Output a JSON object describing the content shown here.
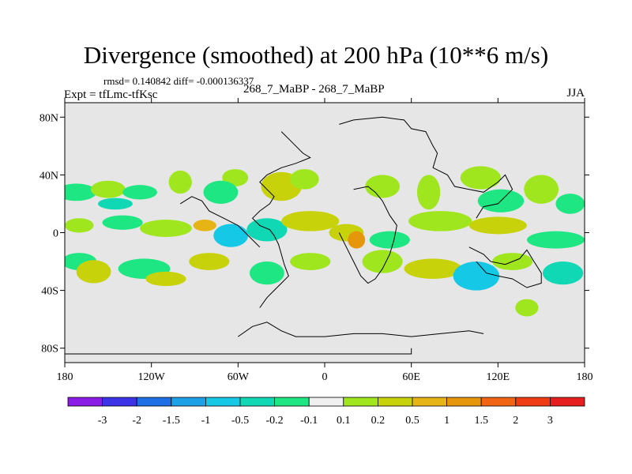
{
  "title": "Divergence (smoothed) at 200 hPa (10**6 m/s)",
  "stats": "rmsd= 0.140842 diff= -0.000136337",
  "experiment": "Expt = tfLmc-tfKsc",
  "case": "268_7_MaBP - 268_7_MaBP",
  "season": "JJA",
  "map": {
    "lon_range": [
      -180,
      180
    ],
    "lat_range": [
      -90,
      90
    ],
    "x_ticks": [
      {
        "value": -180,
        "label": "180"
      },
      {
        "value": -120,
        "label": "120W"
      },
      {
        "value": -60,
        "label": "60W"
      },
      {
        "value": 0,
        "label": "0"
      },
      {
        "value": 60,
        "label": "60E"
      },
      {
        "value": 120,
        "label": "120E"
      },
      {
        "value": 180,
        "label": "180"
      }
    ],
    "y_ticks": [
      {
        "value": 80,
        "label": "80N"
      },
      {
        "value": 40,
        "label": "40N"
      },
      {
        "value": 0,
        "label": "0"
      },
      {
        "value": -40,
        "label": "40S"
      },
      {
        "value": -80,
        "label": "80S"
      }
    ],
    "background_color": "#e6e6e6"
  },
  "colorbar": {
    "colors": [
      "#8a1ce6",
      "#3c32e6",
      "#1e6ee6",
      "#1ea0e6",
      "#14c8e6",
      "#10d8b4",
      "#1ee682",
      "#f0f0f0",
      "#a0e61e",
      "#c8d20a",
      "#e6b414",
      "#e6960a",
      "#f06414",
      "#f03c14",
      "#e61e1e"
    ],
    "labels": [
      "-3",
      "-2",
      "-1.5",
      "-1",
      "-0.5",
      "-0.2",
      "-0.1",
      "0.1",
      "0.2",
      "0.5",
      "1",
      "1.5",
      "2",
      "3"
    ]
  },
  "blobs": [
    {
      "lon": -172,
      "lat": 28,
      "rx": 14,
      "ry": 6,
      "level": 6
    },
    {
      "lon": -150,
      "lat": 30,
      "rx": 12,
      "ry": 6,
      "level": 8
    },
    {
      "lon": -145,
      "lat": 20,
      "rx": 12,
      "ry": 4,
      "level": 5
    },
    {
      "lon": -128,
      "lat": 28,
      "rx": 12,
      "ry": 5,
      "level": 6
    },
    {
      "lon": -100,
      "lat": 35,
      "rx": 8,
      "ry": 8,
      "level": 8
    },
    {
      "lon": -62,
      "lat": 38,
      "rx": 9,
      "ry": 6,
      "level": 8
    },
    {
      "lon": -72,
      "lat": 28,
      "rx": 12,
      "ry": 8,
      "level": 6
    },
    {
      "lon": -30,
      "lat": 32,
      "rx": 14,
      "ry": 10,
      "level": 9
    },
    {
      "lon": -14,
      "lat": 37,
      "rx": 10,
      "ry": 7,
      "level": 8
    },
    {
      "lon": 40,
      "lat": 32,
      "rx": 12,
      "ry": 8,
      "level": 8
    },
    {
      "lon": 72,
      "lat": 28,
      "rx": 8,
      "ry": 12,
      "level": 8
    },
    {
      "lon": 108,
      "lat": 38,
      "rx": 14,
      "ry": 8,
      "level": 8
    },
    {
      "lon": 122,
      "lat": 22,
      "rx": 16,
      "ry": 8,
      "level": 6
    },
    {
      "lon": 150,
      "lat": 30,
      "rx": 12,
      "ry": 10,
      "level": 8
    },
    {
      "lon": 170,
      "lat": 20,
      "rx": 10,
      "ry": 7,
      "level": 6
    },
    {
      "lon": -170,
      "lat": 5,
      "rx": 10,
      "ry": 5,
      "level": 8
    },
    {
      "lon": -140,
      "lat": 7,
      "rx": 14,
      "ry": 5,
      "level": 6
    },
    {
      "lon": -110,
      "lat": 3,
      "rx": 18,
      "ry": 6,
      "level": 8
    },
    {
      "lon": -83,
      "lat": 5,
      "rx": 8,
      "ry": 4,
      "level": 10
    },
    {
      "lon": -65,
      "lat": -2,
      "rx": 12,
      "ry": 8,
      "level": 4
    },
    {
      "lon": -40,
      "lat": 2,
      "rx": 14,
      "ry": 8,
      "level": 5
    },
    {
      "lon": -10,
      "lat": 8,
      "rx": 20,
      "ry": 7,
      "level": 9
    },
    {
      "lon": 15,
      "lat": 0,
      "rx": 12,
      "ry": 6,
      "level": 9
    },
    {
      "lon": 22,
      "lat": -5,
      "rx": 6,
      "ry": 6,
      "level": 11
    },
    {
      "lon": 45,
      "lat": -5,
      "rx": 14,
      "ry": 6,
      "level": 6
    },
    {
      "lon": 80,
      "lat": 8,
      "rx": 22,
      "ry": 7,
      "level": 8
    },
    {
      "lon": 120,
      "lat": 5,
      "rx": 20,
      "ry": 6,
      "level": 9
    },
    {
      "lon": 160,
      "lat": -5,
      "rx": 20,
      "ry": 6,
      "level": 6
    },
    {
      "lon": -170,
      "lat": -20,
      "rx": 12,
      "ry": 6,
      "level": 6
    },
    {
      "lon": -160,
      "lat": -27,
      "rx": 12,
      "ry": 8,
      "level": 9
    },
    {
      "lon": -125,
      "lat": -25,
      "rx": 18,
      "ry": 7,
      "level": 6
    },
    {
      "lon": -110,
      "lat": -32,
      "rx": 14,
      "ry": 5,
      "level": 9
    },
    {
      "lon": -80,
      "lat": -20,
      "rx": 14,
      "ry": 6,
      "level": 9
    },
    {
      "lon": -40,
      "lat": -28,
      "rx": 12,
      "ry": 8,
      "level": 6
    },
    {
      "lon": -10,
      "lat": -20,
      "rx": 14,
      "ry": 6,
      "level": 8
    },
    {
      "lon": 40,
      "lat": -20,
      "rx": 14,
      "ry": 8,
      "level": 8
    },
    {
      "lon": 75,
      "lat": -25,
      "rx": 20,
      "ry": 7,
      "level": 9
    },
    {
      "lon": 105,
      "lat": -30,
      "rx": 16,
      "ry": 10,
      "level": 4
    },
    {
      "lon": 130,
      "lat": -20,
      "rx": 14,
      "ry": 6,
      "level": 8
    },
    {
      "lon": 165,
      "lat": -28,
      "rx": 14,
      "ry": 8,
      "level": 5
    },
    {
      "lon": 140,
      "lat": -52,
      "rx": 8,
      "ry": 6,
      "level": 8
    }
  ]
}
